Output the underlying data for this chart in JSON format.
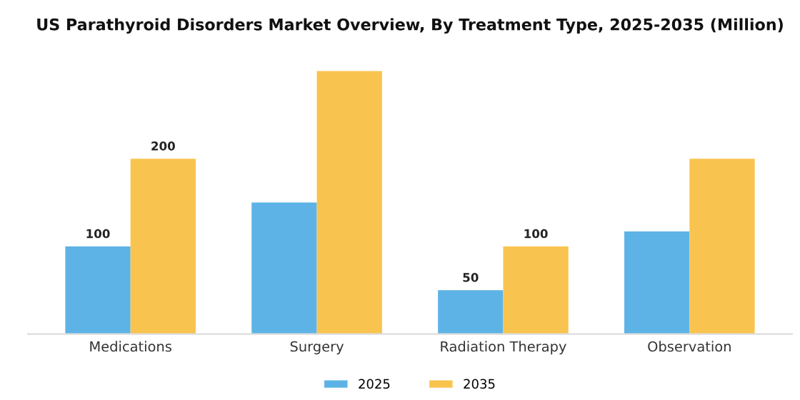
{
  "chart_data": {
    "type": "bar",
    "title": "US Parathyroid Disorders Market Overview, By Treatment Type, 2025-2035 (Million)",
    "categories": [
      "Medications",
      "Surgery",
      "Radiation Therapy",
      "Observation"
    ],
    "series": [
      {
        "name": "2025",
        "color": "#5db3e6",
        "values": [
          100,
          150,
          50,
          117
        ],
        "value_labels": [
          "100",
          null,
          "50",
          null
        ]
      },
      {
        "name": "2035",
        "color": "#f8c44f",
        "values": [
          200,
          300,
          100,
          200
        ],
        "value_labels": [
          "200",
          null,
          "100",
          null
        ]
      }
    ],
    "tick_labels": "x",
    "legend": "bottom",
    "grid": false
  }
}
